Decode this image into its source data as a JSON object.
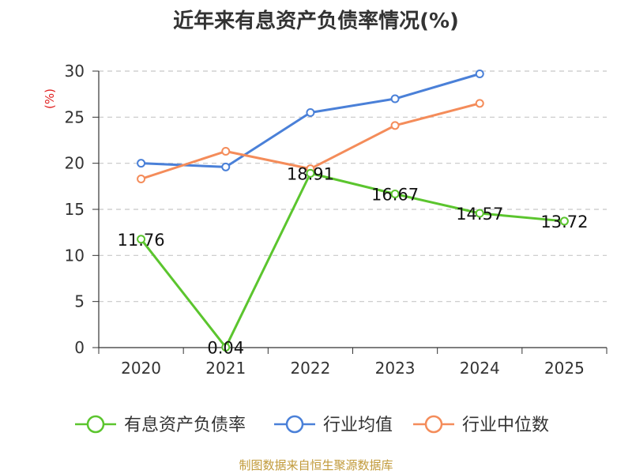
{
  "title": "近年来有息资产负债率情况(%)",
  "ylabel": "(%)",
  "footer": "制图数据来自恒生聚源数据库",
  "chart_data": {
    "type": "line",
    "categories": [
      "2020",
      "2021",
      "2022",
      "2023",
      "2024",
      "2025"
    ],
    "ylim": [
      0,
      30
    ],
    "yticks": [
      0,
      5,
      10,
      15,
      20,
      25,
      30
    ],
    "grid": true,
    "legend_position": "bottom",
    "series": [
      {
        "name": "有息资产负债率",
        "color": "#5bc52e",
        "values": [
          11.76,
          0.04,
          18.91,
          16.67,
          14.57,
          13.72
        ],
        "labels": [
          "11.76",
          "0.04",
          "18.91",
          "16.67",
          "14.57",
          "13.72"
        ]
      },
      {
        "name": "行业均值",
        "color": "#4a80d8",
        "values": [
          20.0,
          19.6,
          25.5,
          27.0,
          29.7,
          null
        ]
      },
      {
        "name": "行业中位数",
        "color": "#f48c5a",
        "values": [
          18.3,
          21.3,
          19.4,
          24.1,
          26.5,
          null
        ]
      }
    ]
  }
}
